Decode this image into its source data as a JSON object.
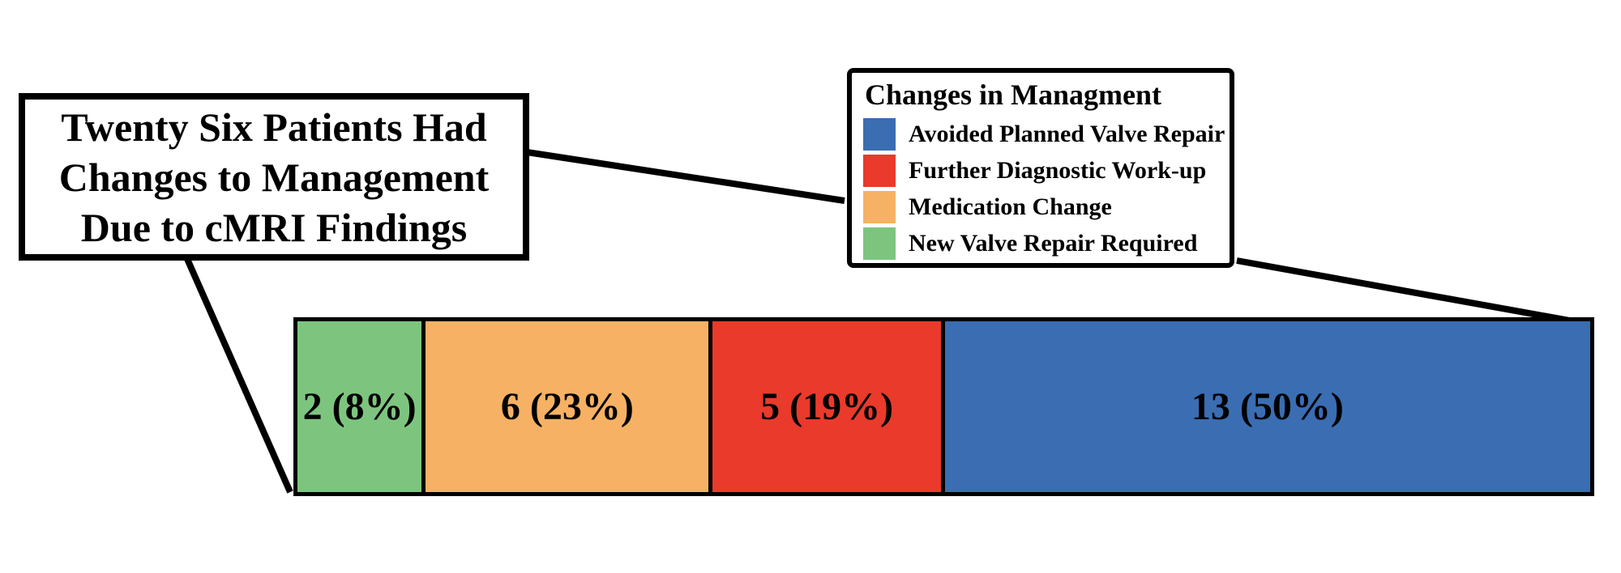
{
  "title_box": {
    "lines": [
      "Twenty Six Patients Had",
      "Changes to Management",
      "Due to cMRI Findings"
    ]
  },
  "legend": {
    "title": "Changes in Managment",
    "items": [
      {
        "label": "Avoided Planned Valve Repair",
        "color": "#3A6DB2",
        "name": "avoided-planned-valve-repair"
      },
      {
        "label": "Further Diagnostic Work-up",
        "color": "#E93A2B",
        "name": "further-diagnostic-work-up"
      },
      {
        "label": "Medication Change",
        "color": "#F6B164",
        "name": "medication-change"
      },
      {
        "label": "New Valve Repair Required",
        "color": "#7DC57F",
        "name": "new-valve-repair-required"
      }
    ]
  },
  "bar": {
    "segments": [
      {
        "category": "New Valve Repair Required",
        "label": "2 (8%)",
        "value": 2,
        "percent": 8,
        "color": "#7DC57F",
        "width_pct": 9.7,
        "name": "new-valve-repair-required"
      },
      {
        "category": "Medication Change",
        "label": "6 (23%)",
        "value": 6,
        "percent": 23,
        "color": "#F6B164",
        "width_pct": 22.1,
        "name": "medication-change"
      },
      {
        "category": "Further Diagnostic Work-up",
        "label": "5 (19%)",
        "value": 5,
        "percent": 19,
        "color": "#E93A2B",
        "width_pct": 17.8,
        "name": "further-diagnostic-work-up"
      },
      {
        "category": "Avoided Planned Valve Repair",
        "label": "13 (50%)",
        "value": 13,
        "percent": 50,
        "color": "#3A6DB2",
        "width_pct": 50.4,
        "name": "avoided-planned-valve-repair"
      }
    ]
  },
  "chart_data": {
    "type": "bar",
    "subtype": "horizontal-stacked-single-bar",
    "title": "Twenty Six Patients Had Changes to Management Due to cMRI Findings",
    "legend_title": "Changes in Managment",
    "legend_position": "top-right",
    "total": 26,
    "categories": [
      "New Valve Repair Required",
      "Medication Change",
      "Further Diagnostic Work-up",
      "Avoided Planned Valve Repair"
    ],
    "values": [
      2,
      6,
      5,
      13
    ],
    "percents": [
      8,
      23,
      19,
      50
    ],
    "data_labels": [
      "2 (8%)",
      "6 (23%)",
      "5 (19%)",
      "13 (50%)"
    ],
    "colors": {
      "New Valve Repair Required": "#7DC57F",
      "Medication Change": "#F6B164",
      "Further Diagnostic Work-up": "#E93A2B",
      "Avoided Planned Valve Repair": "#3A6DB2"
    },
    "axes": "none",
    "grid": false,
    "annotations": [
      "title box connected by callout line to legend box and to bar lower-left corner",
      "legend box connected by callout line to bar upper-right corner"
    ]
  }
}
